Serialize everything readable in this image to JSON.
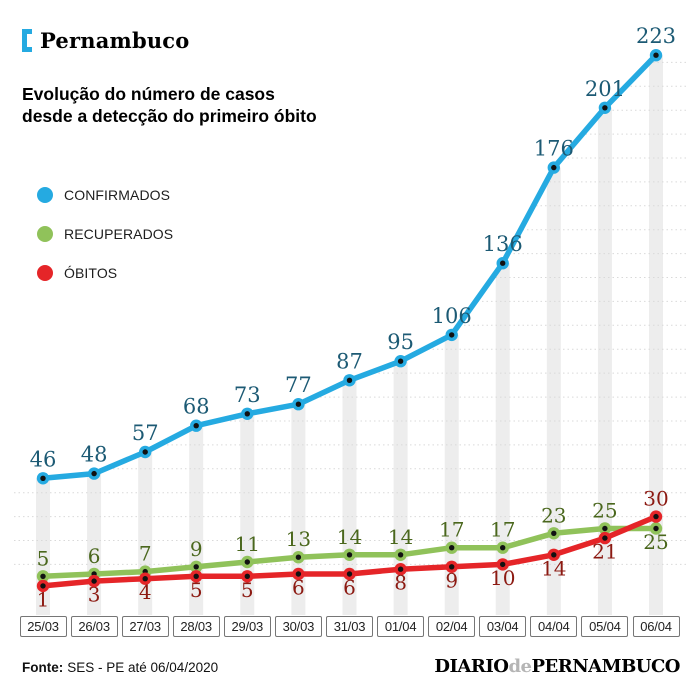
{
  "header": {
    "title": "Pernambuco",
    "subtitle": "Evolução do número de casos\ndesde a detecção do primeiro óbito",
    "accent_color": "#25aae1"
  },
  "legend": {
    "items": [
      {
        "label": "CONFIRMADOS",
        "color": "#25aae1"
      },
      {
        "label": "RECUPERADOS",
        "color": "#90c25a"
      },
      {
        "label": "ÓBITOS",
        "color": "#e52528"
      }
    ]
  },
  "chart_data": {
    "type": "line",
    "categories": [
      "25/03",
      "26/03",
      "27/03",
      "28/03",
      "29/03",
      "30/03",
      "31/03",
      "01/04",
      "02/04",
      "03/04",
      "04/04",
      "05/04",
      "06/04"
    ],
    "series": [
      {
        "name": "CONFIRMADOS",
        "color": "#25aae1",
        "label_color": "#1c5a74",
        "values": [
          46,
          48,
          57,
          68,
          73,
          77,
          87,
          95,
          106,
          136,
          176,
          201,
          223
        ],
        "label_side": "above"
      },
      {
        "name": "RECUPERADOS",
        "color": "#90c25a",
        "label_color": "#4a671d",
        "values": [
          5,
          6,
          7,
          9,
          11,
          13,
          14,
          14,
          17,
          17,
          23,
          25,
          25
        ],
        "label_side": "above",
        "label_side_overrides": {
          "12": "below"
        }
      },
      {
        "name": "ÓBITOS",
        "color": "#e52528",
        "label_color": "#8c1a12",
        "values": [
          1,
          3,
          4,
          5,
          5,
          6,
          6,
          8,
          9,
          10,
          14,
          21,
          30
        ],
        "label_side": "below",
        "label_side_overrides": {
          "12": "above"
        }
      }
    ],
    "ylim": [
      0,
      230
    ],
    "grid": {
      "axis": "y",
      "step": 10,
      "style": "dotted",
      "clipped_above_line": true
    },
    "column_highlight_color": "#ededed",
    "legend_position": "upper-left"
  },
  "footer": {
    "source_label": "Fonte:",
    "source_text": "SES - PE até 06/04/2020",
    "logo": {
      "word1": "DIARIO",
      "word2": "de",
      "word3": "PERNAMBUCO"
    }
  }
}
